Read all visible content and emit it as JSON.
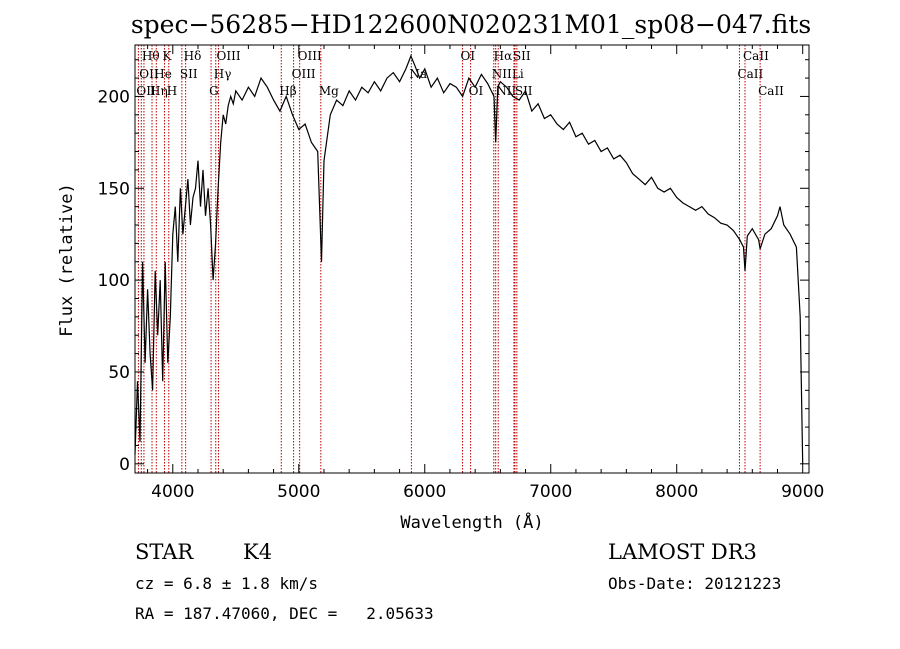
{
  "chart_data": {
    "type": "line",
    "title": "spec−56285−HD122600N020231M01_sp08−047.fits",
    "xlabel": "Wavelength (Å)",
    "ylabel": "Flux (relative)",
    "xlim": [
      3700,
      9050
    ],
    "ylim": [
      -5,
      228
    ],
    "xticks": [
      4000,
      5000,
      6000,
      7000,
      8000,
      9000
    ],
    "yticks": [
      0,
      50,
      100,
      150,
      200
    ],
    "grid": false,
    "series": [
      {
        "values": [
          [
            3700,
            5
          ],
          [
            3720,
            45
          ],
          [
            3740,
            12
          ],
          [
            3760,
            110
          ],
          [
            3780,
            55
          ],
          [
            3800,
            95
          ],
          [
            3820,
            60
          ],
          [
            3840,
            40
          ],
          [
            3860,
            105
          ],
          [
            3880,
            70
          ],
          [
            3900,
            100
          ],
          [
            3920,
            45
          ],
          [
            3940,
            110
          ],
          [
            3960,
            55
          ],
          [
            3980,
            80
          ],
          [
            4000,
            125
          ],
          [
            4020,
            140
          ],
          [
            4040,
            110
          ],
          [
            4060,
            150
          ],
          [
            4080,
            125
          ],
          [
            4100,
            140
          ],
          [
            4120,
            155
          ],
          [
            4140,
            130
          ],
          [
            4160,
            145
          ],
          [
            4180,
            150
          ],
          [
            4200,
            165
          ],
          [
            4220,
            140
          ],
          [
            4240,
            160
          ],
          [
            4260,
            135
          ],
          [
            4280,
            150
          ],
          [
            4300,
            130
          ],
          [
            4320,
            100
          ],
          [
            4340,
            120
          ],
          [
            4360,
            150
          ],
          [
            4380,
            175
          ],
          [
            4400,
            190
          ],
          [
            4420,
            185
          ],
          [
            4440,
            195
          ],
          [
            4460,
            200
          ],
          [
            4480,
            196
          ],
          [
            4500,
            203
          ],
          [
            4550,
            198
          ],
          [
            4600,
            205
          ],
          [
            4650,
            200
          ],
          [
            4700,
            210
          ],
          [
            4750,
            205
          ],
          [
            4800,
            198
          ],
          [
            4850,
            192
          ],
          [
            4900,
            200
          ],
          [
            4950,
            190
          ],
          [
            5000,
            182
          ],
          [
            5050,
            185
          ],
          [
            5100,
            175
          ],
          [
            5150,
            170
          ],
          [
            5180,
            110
          ],
          [
            5200,
            165
          ],
          [
            5250,
            190
          ],
          [
            5300,
            198
          ],
          [
            5350,
            195
          ],
          [
            5400,
            203
          ],
          [
            5450,
            198
          ],
          [
            5500,
            205
          ],
          [
            5550,
            202
          ],
          [
            5600,
            208
          ],
          [
            5650,
            203
          ],
          [
            5700,
            210
          ],
          [
            5750,
            213
          ],
          [
            5800,
            208
          ],
          [
            5850,
            215
          ],
          [
            5890,
            222
          ],
          [
            5920,
            217
          ],
          [
            5960,
            210
          ],
          [
            6000,
            215
          ],
          [
            6050,
            205
          ],
          [
            6100,
            210
          ],
          [
            6150,
            202
          ],
          [
            6200,
            207
          ],
          [
            6250,
            205
          ],
          [
            6300,
            200
          ],
          [
            6350,
            210
          ],
          [
            6400,
            205
          ],
          [
            6450,
            212
          ],
          [
            6500,
            207
          ],
          [
            6550,
            200
          ],
          [
            6563,
            175
          ],
          [
            6580,
            205
          ],
          [
            6600,
            208
          ],
          [
            6650,
            205
          ],
          [
            6700,
            200
          ],
          [
            6750,
            198
          ],
          [
            6800,
            203
          ],
          [
            6850,
            192
          ],
          [
            6900,
            196
          ],
          [
            6950,
            188
          ],
          [
            7000,
            190
          ],
          [
            7050,
            185
          ],
          [
            7100,
            182
          ],
          [
            7150,
            186
          ],
          [
            7200,
            178
          ],
          [
            7250,
            180
          ],
          [
            7300,
            174
          ],
          [
            7350,
            176
          ],
          [
            7400,
            170
          ],
          [
            7450,
            172
          ],
          [
            7500,
            166
          ],
          [
            7550,
            168
          ],
          [
            7600,
            164
          ],
          [
            7650,
            158
          ],
          [
            7700,
            155
          ],
          [
            7750,
            152
          ],
          [
            7800,
            156
          ],
          [
            7850,
            150
          ],
          [
            7900,
            148
          ],
          [
            7950,
            150
          ],
          [
            8000,
            145
          ],
          [
            8050,
            142
          ],
          [
            8100,
            140
          ],
          [
            8150,
            138
          ],
          [
            8200,
            140
          ],
          [
            8250,
            136
          ],
          [
            8300,
            134
          ],
          [
            8350,
            131
          ],
          [
            8400,
            130
          ],
          [
            8450,
            127
          ],
          [
            8500,
            122
          ],
          [
            8530,
            118
          ],
          [
            8542,
            105
          ],
          [
            8560,
            124
          ],
          [
            8600,
            128
          ],
          [
            8650,
            122
          ],
          [
            8662,
            117
          ],
          [
            8700,
            125
          ],
          [
            8750,
            128
          ],
          [
            8800,
            135
          ],
          [
            8820,
            140
          ],
          [
            8850,
            130
          ],
          [
            8900,
            125
          ],
          [
            8950,
            118
          ],
          [
            8980,
            80
          ],
          [
            9000,
            0
          ]
        ]
      }
    ],
    "lines": [
      {
        "wl": 3727,
        "label": "OII",
        "row": 2
      },
      {
        "wl": 3750,
        "label": "OII",
        "row": 1
      },
      {
        "wl": 3771,
        "label": "Hθ",
        "row": 0
      },
      {
        "wl": 3835,
        "label": "Hη",
        "row": 2
      },
      {
        "wl": 3869,
        "label": "He",
        "row": 1
      },
      {
        "wl": 3934,
        "label": "K",
        "row": 0
      },
      {
        "wl": 3968,
        "label": "H",
        "row": 2
      },
      {
        "wl": 4072,
        "label": "SII",
        "row": 1
      },
      {
        "wl": 4102,
        "label": "Hδ",
        "row": 0
      },
      {
        "wl": 4304,
        "label": "G",
        "row": 2
      },
      {
        "wl": 4341,
        "label": "Hγ",
        "row": 1
      },
      {
        "wl": 4363,
        "label": "OIII",
        "row": 0
      },
      {
        "wl": 4861,
        "label": "Hβ",
        "row": 2
      },
      {
        "wl": 4959,
        "label": "OIII",
        "row": 1
      },
      {
        "wl": 5007,
        "label": "OIII",
        "row": 0
      },
      {
        "wl": 5175,
        "label": "Mg",
        "row": 2
      },
      {
        "wl": 5894,
        "label": "Na",
        "row": 1
      },
      {
        "wl": 6300,
        "label": "OI",
        "row": 0
      },
      {
        "wl": 6364,
        "label": "OI",
        "row": 2
      },
      {
        "wl": 6548,
        "label": "NII",
        "row": 1
      },
      {
        "wl": 6563,
        "label": "Hα",
        "row": 0
      },
      {
        "wl": 6583,
        "label": "NII",
        "row": 2
      },
      {
        "wl": 6708,
        "label": "Li",
        "row": 1
      },
      {
        "wl": 6716,
        "label": "SII",
        "row": 0
      },
      {
        "wl": 6731,
        "label": "SII",
        "row": 2
      },
      {
        "wl": 8498,
        "label": "CaII",
        "row": 1
      },
      {
        "wl": 8542,
        "label": "CaII",
        "row": 0
      },
      {
        "wl": 8662,
        "label": "CaII",
        "row": 2
      }
    ]
  },
  "info": {
    "object_class": "STAR",
    "subclass": "K4",
    "survey": "LAMOST DR3",
    "cz": "cz = 6.8 ± 1.8 km/s",
    "obs_date": "Obs-Date: 20121223",
    "coords": "RA = 187.47060, DEC =   2.05633"
  },
  "colors": {
    "spectrum": "#000000",
    "lines": "#c00000",
    "axes": "#000000"
  }
}
